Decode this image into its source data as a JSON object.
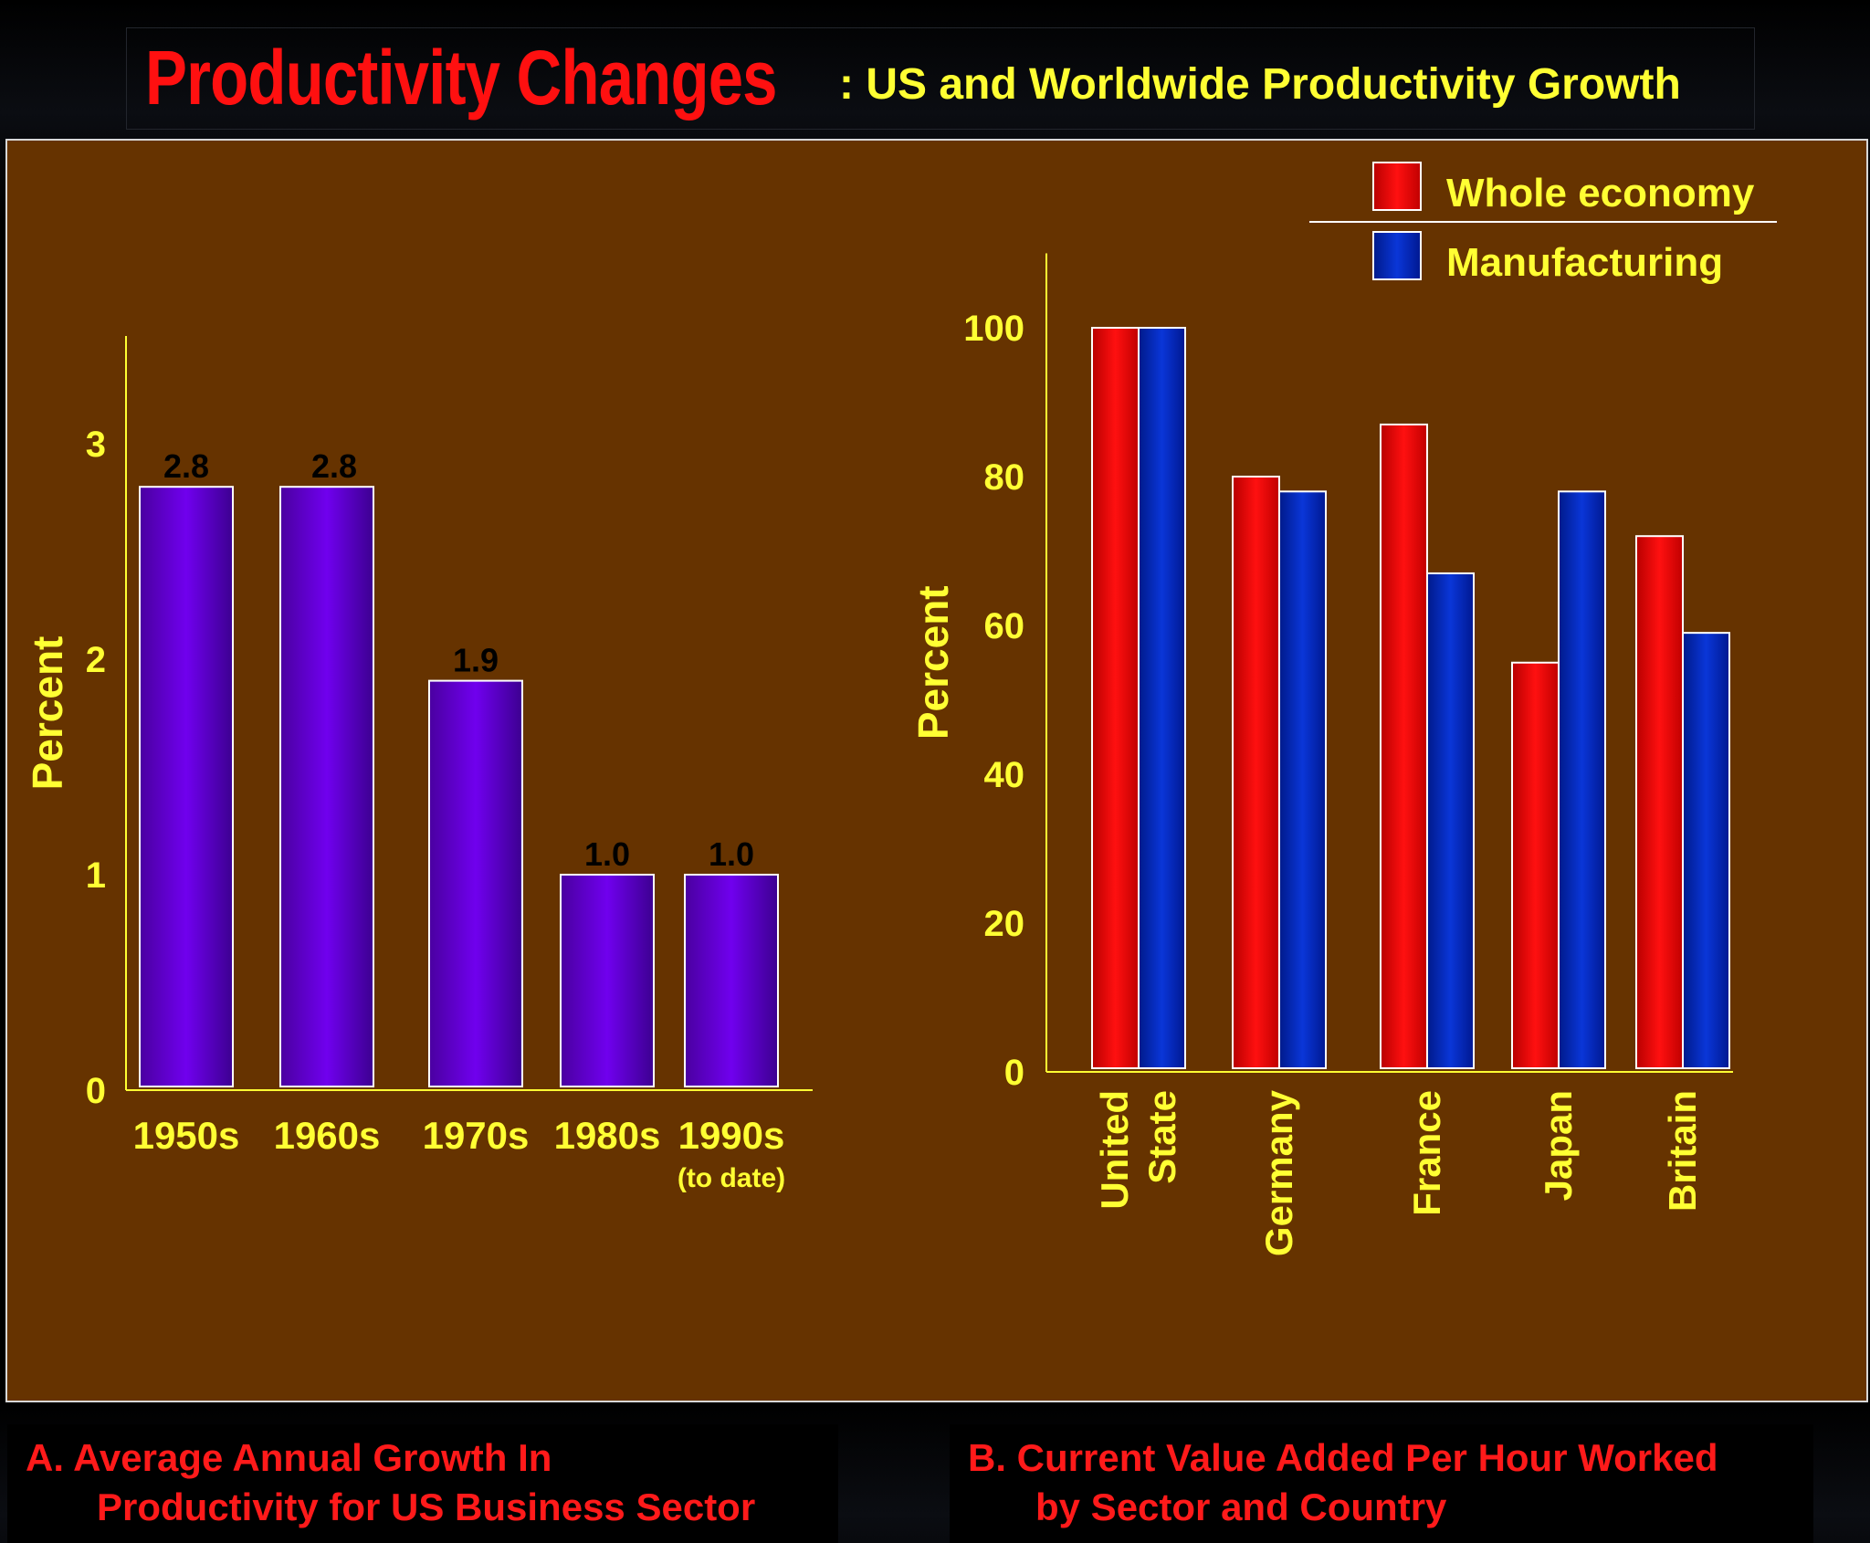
{
  "header": {
    "title_main": "Productivity Changes",
    "title_sub": ": US and Worldwide Productivity Growth"
  },
  "captions": {
    "a_line1": "A.  Average Annual Growth In",
    "a_line2": "Productivity for US Business Sector",
    "b_line1": "B.  Current Value Added Per Hour Worked",
    "b_line2": "by Sector and Country"
  },
  "colors": {
    "panel_bg": "#663300",
    "axis_text": "#ffff33",
    "caption_text": "#ff1a1a",
    "bar_purple": "#6a00d8",
    "bar_red": "#ff0000",
    "bar_blue": "#0022cc"
  },
  "chart_data": [
    {
      "type": "bar",
      "title": "",
      "xlabel": "",
      "ylabel": "Percent",
      "ylim": [
        0,
        3.5
      ],
      "yticks": [
        0,
        1,
        2,
        3
      ],
      "categories": [
        "1950s",
        "1960s",
        "1970s",
        "1980s",
        "1990s"
      ],
      "category_notes": [
        "",
        "",
        "",
        "",
        "(to date)"
      ],
      "values": [
        2.8,
        2.8,
        1.9,
        1.0,
        1.0
      ],
      "data_labels": [
        "2.8",
        "2.8",
        "1.9",
        "1.0",
        "1.0"
      ],
      "grid": false,
      "legend": "none"
    },
    {
      "type": "bar",
      "title": "",
      "xlabel": "",
      "ylabel": "Percent",
      "ylim": [
        0,
        110
      ],
      "yticks": [
        0,
        20,
        40,
        60,
        80,
        100
      ],
      "categories": [
        [
          "United",
          "State"
        ],
        [
          "Germany"
        ],
        [
          "France"
        ],
        [
          "Japan"
        ],
        [
          "Britain"
        ]
      ],
      "series": [
        {
          "name": "Whole economy",
          "color": "#ff0000",
          "values": [
            100,
            80,
            87,
            55,
            72
          ]
        },
        {
          "name": "Manufacturing",
          "color": "#0022cc",
          "values": [
            100,
            78,
            67,
            78,
            59
          ]
        }
      ],
      "grid": false,
      "legend": "top-right"
    }
  ]
}
